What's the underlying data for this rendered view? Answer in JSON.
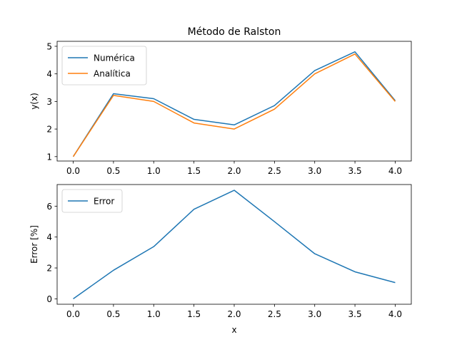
{
  "chart_data": [
    {
      "type": "line",
      "title": "Método de Ralston",
      "xlabel": "",
      "ylabel": "y(x)",
      "x": [
        0.0,
        0.5,
        1.0,
        1.5,
        2.0,
        2.5,
        3.0,
        3.5,
        4.0
      ],
      "x_ticks": [
        "0.0",
        "0.5",
        "1.0",
        "1.5",
        "2.0",
        "2.5",
        "3.0",
        "3.5",
        "4.0"
      ],
      "y_ticks": [
        "1",
        "2",
        "3",
        "4",
        "5"
      ],
      "xlim": [
        -0.2,
        4.2
      ],
      "ylim": [
        0.84,
        5.18
      ],
      "legend_position": "upper-left",
      "series": [
        {
          "name": "Numérica",
          "color": "#1f77b4",
          "values": [
            1.0,
            3.28,
            3.1,
            2.35,
            2.15,
            2.85,
            4.12,
            4.8,
            3.03
          ]
        },
        {
          "name": "Analítica",
          "color": "#ff7f0e",
          "values": [
            1.0,
            3.22,
            3.0,
            2.22,
            2.0,
            2.72,
            4.0,
            4.72,
            3.0
          ]
        }
      ]
    },
    {
      "type": "line",
      "title": "",
      "xlabel": "x",
      "ylabel": "Error [%]",
      "x": [
        0.0,
        0.5,
        1.0,
        1.5,
        2.0,
        2.5,
        3.0,
        3.5,
        4.0
      ],
      "x_ticks": [
        "0.0",
        "0.5",
        "1.0",
        "1.5",
        "2.0",
        "2.5",
        "3.0",
        "3.5",
        "4.0"
      ],
      "y_ticks": [
        "0",
        "2",
        "4",
        "6"
      ],
      "xlim": [
        -0.2,
        4.2
      ],
      "ylim": [
        -0.35,
        7.4
      ],
      "legend_position": "upper-left",
      "series": [
        {
          "name": "Error",
          "color": "#1f77b4",
          "values": [
            0.0,
            1.85,
            3.38,
            5.8,
            7.03,
            5.0,
            2.92,
            1.75,
            1.05
          ]
        }
      ]
    }
  ]
}
